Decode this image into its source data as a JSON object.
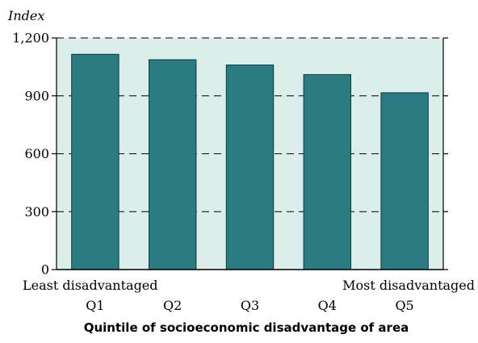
{
  "chart_data": {
    "type": "bar",
    "categories": [
      "Q1",
      "Q2",
      "Q3",
      "Q4",
      "Q5"
    ],
    "values": [
      1115,
      1087,
      1060,
      1010,
      916
    ],
    "ylabel": "Index",
    "xlabel": "Quintile of socioeconomic disadvantage of area",
    "ylim": [
      0,
      1200
    ],
    "yticks": [
      0,
      300,
      600,
      900,
      1200
    ],
    "ytick_labels": [
      "0",
      "300",
      "600",
      "900",
      "1,200"
    ],
    "x_left_note": "Least disadvantaged",
    "x_right_note": "Most disadvantaged",
    "grid": "dashed horizontal",
    "colors": {
      "bar": "#2a7b82",
      "plot_background": "#dbeee9",
      "gridline": "#000000",
      "axis": "#000000"
    }
  }
}
